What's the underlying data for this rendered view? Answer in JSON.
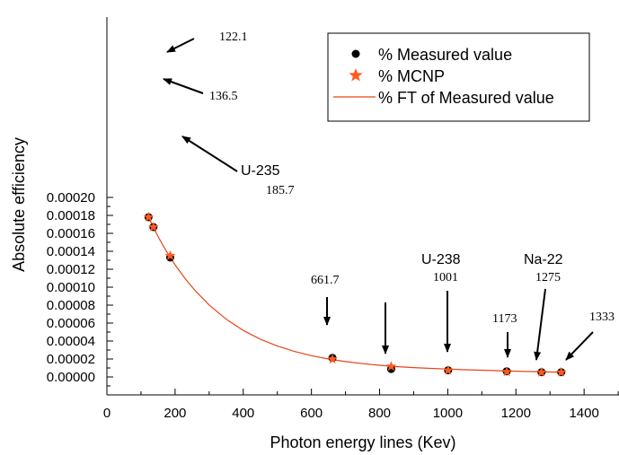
{
  "chart_data": {
    "type": "scatter",
    "xlabel": "Photon energy lines (Kev)",
    "ylabel": "Absolute efficiency",
    "xlim": [
      0,
      1500
    ],
    "ylim": [
      -1e-05,
      0.0002
    ],
    "x_ticks": [
      0,
      200,
      400,
      600,
      800,
      1000,
      1200,
      1400
    ],
    "x_tick_labels": [
      "0",
      "200",
      "400",
      "600",
      "800",
      "1000",
      "1200",
      "1400"
    ],
    "y_ticks": [
      0.0,
      2e-05,
      4e-05,
      6e-05,
      8e-05,
      0.0001,
      0.00012,
      0.00014,
      0.00016,
      0.00018,
      0.0002
    ],
    "y_tick_labels": [
      "0.00000",
      "0.00002",
      "0.00004",
      "0.00006",
      "0.00008",
      "0.00010",
      "0.00012",
      "0.00014",
      "0.00016",
      "0.00018",
      "0.00020"
    ],
    "grid": false,
    "legend_position": "top-right",
    "series": [
      {
        "name": "% Measured value",
        "marker": "circle",
        "color": "#000000",
        "x": [
          122.1,
          136.5,
          185.7,
          661.7,
          834,
          1001,
          1173,
          1275,
          1333
        ],
        "y": [
          0.000178,
          0.000167,
          0.000133,
          2.12e-05,
          8.8e-06,
          7.4e-06,
          6.3e-06,
          5.3e-06,
          5.3e-06
        ]
      },
      {
        "name": "% MCNP",
        "marker": "star",
        "color": "#ff5a1e",
        "x": [
          122.1,
          136.5,
          185.7,
          661.7,
          834,
          1001,
          1173,
          1275,
          1333
        ],
        "y": [
          0.000178,
          0.000167,
          0.000135,
          1.98e-05,
          1.17e-05,
          7.4e-06,
          5.7e-06,
          5.1e-06,
          5.1e-06
        ]
      },
      {
        "name": "% FT of Measured value",
        "line": true,
        "color": "#e8431a",
        "x": [
          120,
          140,
          160,
          180,
          200,
          230,
          260,
          300,
          350,
          400,
          450,
          500,
          550,
          600,
          650,
          700,
          750,
          800,
          850,
          900,
          950,
          1000,
          1050,
          1100,
          1150,
          1200,
          1250,
          1300,
          1345
        ],
        "y": [
          0.0001795,
          0.0001638,
          0.0001495,
          0.0001366,
          0.0001249,
          0.0001093,
          9.58e-05,
          8.02e-05,
          6.43e-05,
          5.18e-05,
          4.21e-05,
          3.44e-05,
          2.84e-05,
          2.37e-05,
          2e-05,
          1.71e-05,
          1.48e-05,
          1.3e-05,
          1.15e-05,
          1.04e-05,
          9.5e-06,
          8.8e-06,
          8e-06,
          7.5e-06,
          6.9e-06,
          6.4e-06,
          5.9e-06,
          5.5e-06,
          5.1e-06
        ]
      }
    ],
    "annotations": [
      {
        "text": "122.1",
        "style": "serif"
      },
      {
        "text": "136.5",
        "style": "serif"
      },
      {
        "text": "U-235",
        "style": "sans"
      },
      {
        "text": "185.7",
        "style": "serif"
      },
      {
        "text": "661.7",
        "style": "serif"
      },
      {
        "text": "U-238",
        "style": "sans"
      },
      {
        "text": "1001",
        "style": "serif"
      },
      {
        "text": "1173",
        "style": "serif"
      },
      {
        "text": "Na-22",
        "style": "sans"
      },
      {
        "text": "1275",
        "style": "serif"
      },
      {
        "text": "1333",
        "style": "serif"
      }
    ]
  }
}
